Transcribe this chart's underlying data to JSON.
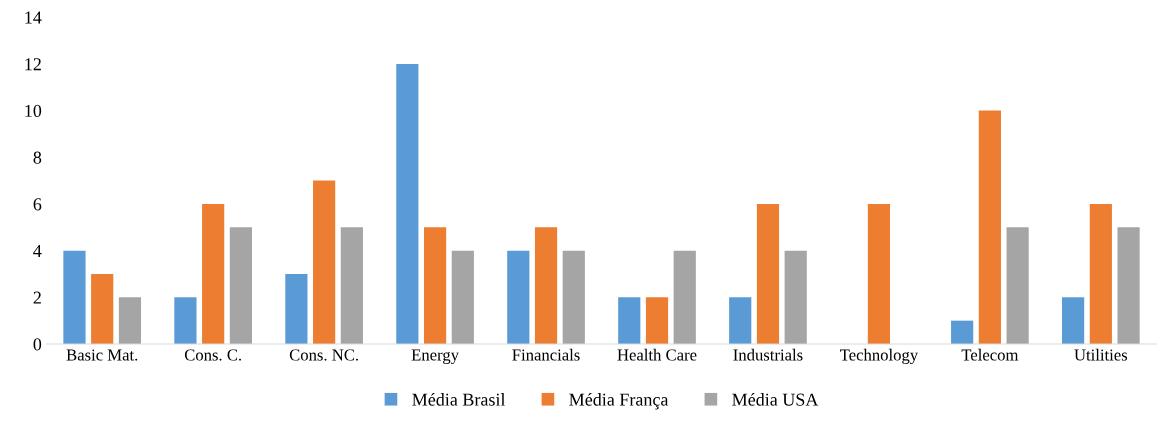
{
  "chart_data": {
    "type": "bar",
    "categories": [
      "Basic Mat.",
      "Cons. C.",
      "Cons. NC.",
      "Energy",
      "Financials",
      "Health Care",
      "Industrials",
      "Technology",
      "Telecom",
      "Utilities"
    ],
    "series": [
      {
        "name": "Média Brasil",
        "color": "#5b9bd5",
        "values": [
          4,
          2,
          3,
          12,
          4,
          2,
          2,
          0,
          1,
          2
        ]
      },
      {
        "name": "Média França",
        "color": "#ed7d31",
        "values": [
          3,
          6,
          7,
          5,
          5,
          2,
          6,
          6,
          10,
          6
        ]
      },
      {
        "name": "Média USA",
        "color": "#a5a5a5",
        "values": [
          2,
          5,
          5,
          4,
          4,
          4,
          4,
          0,
          5,
          5
        ]
      }
    ],
    "ylim": [
      0,
      14
    ],
    "yticks": [
      0,
      2,
      4,
      6,
      8,
      10,
      12,
      14
    ],
    "grid": false,
    "legend": "bottom"
  }
}
